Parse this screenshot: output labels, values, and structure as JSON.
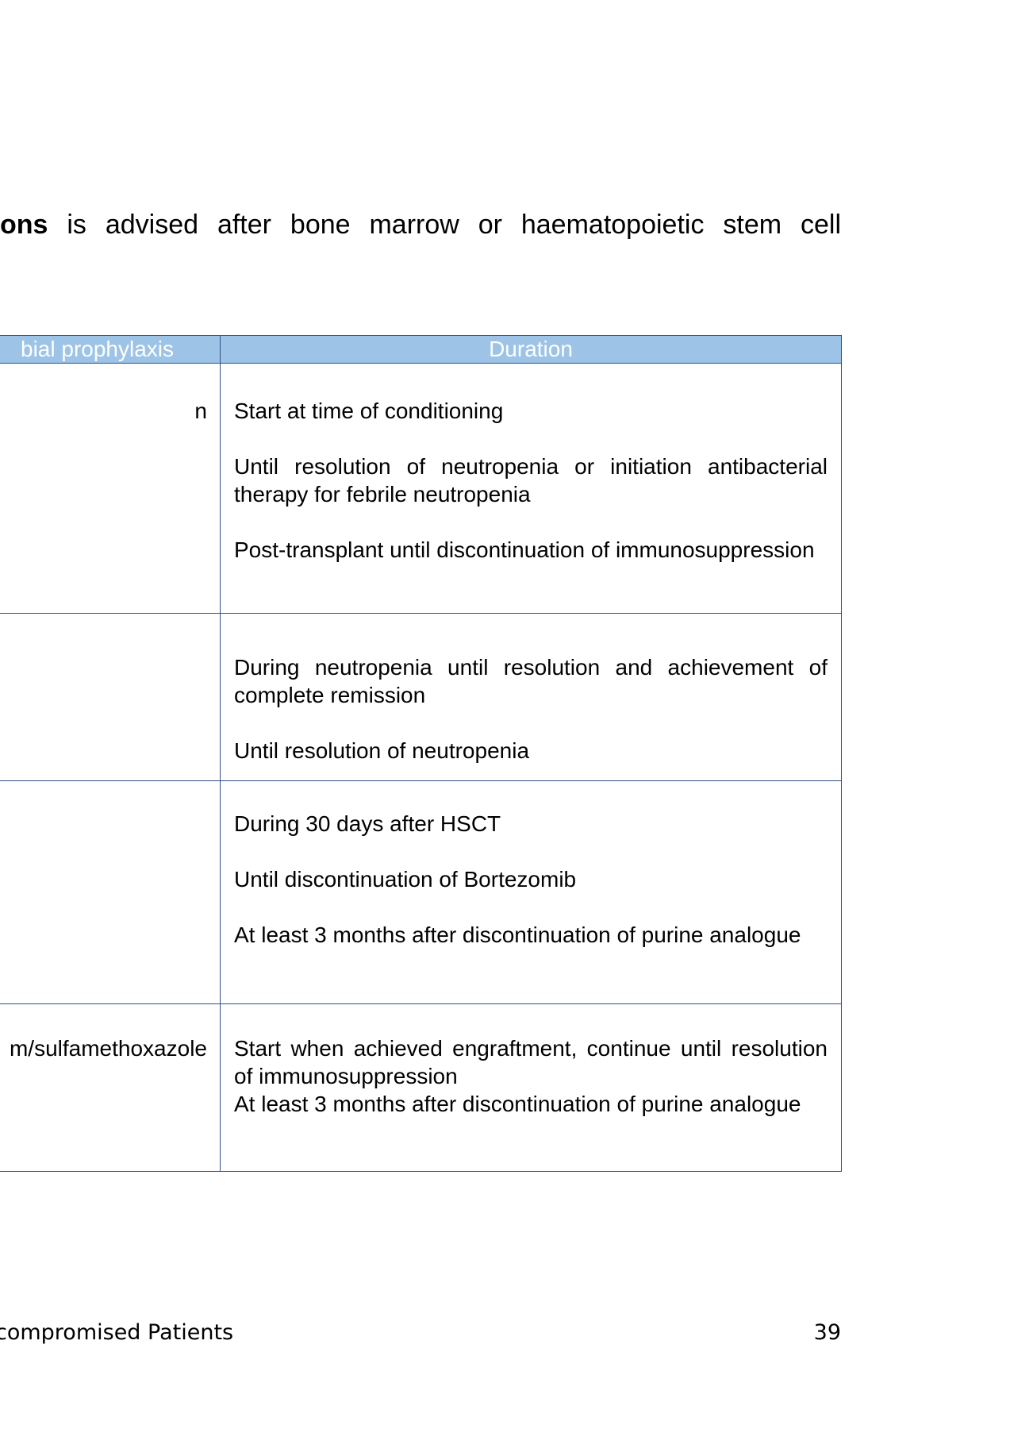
{
  "intro": {
    "bold_part": "ons",
    "rest": " is advised after bone marrow or haematopoietic stem cell"
  },
  "table": {
    "headers": [
      "bial prophylaxis",
      "Duration"
    ],
    "rows": [
      {
        "agent": "n",
        "duration": [
          "Start at time of conditioning",
          "Until resolution of neutropenia or initiation antibacterial therapy for febrile neutropenia",
          "Post-transplant until discontinuation of immunosuppression"
        ]
      },
      {
        "agent": "",
        "duration": [
          "During neutropenia until resolution and achievement of complete remission",
          "Until resolution of neutropenia"
        ]
      },
      {
        "agent": "",
        "duration": [
          "During  30 days after HSCT",
          "Until discontinuation of Bortezomib",
          "At least 3 months after discontinuation of purine analogue"
        ]
      },
      {
        "agent": "m/sulfamethoxazole",
        "duration": [
          "Start when achieved engraftment, continue until resolution of immunosuppression",
          "At least 3 months after discontinuation of purine analogue"
        ]
      }
    ]
  },
  "footer": {
    "left": "compromised Patients",
    "page_number": "39"
  }
}
